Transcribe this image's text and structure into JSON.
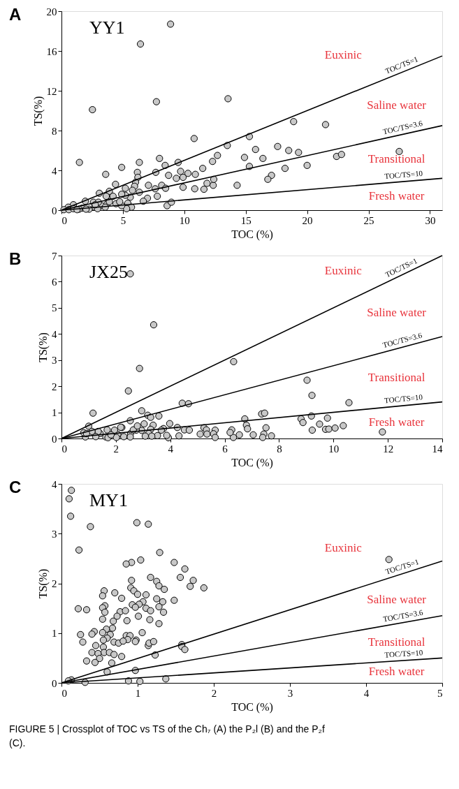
{
  "chart_data": [
    {
      "type": "scatter",
      "title": "YY1",
      "xlabel": "TOC (%)",
      "ylabel": "TS(%)",
      "xlim": [
        0,
        31
      ],
      "ylim": [
        0,
        20
      ],
      "xticks": [
        0,
        5,
        10,
        15,
        20,
        25,
        30
      ],
      "yticks": [
        0,
        4,
        8,
        12,
        16,
        20
      ],
      "annotations": [
        "A",
        "Euxinic",
        "Saline water",
        "Transitional",
        "Fresh water"
      ],
      "series": [
        {
          "marker": "circle",
          "color": "#c8c8c8",
          "x": [
            8.88,
            6.43,
            2.52,
            7.73,
            13.56,
            18.9,
            21.5,
            10.8,
            15.3,
            13.5,
            1.46,
            7.98,
            12.7,
            17.6,
            18.5,
            19.3,
            22.4,
            22.8,
            27.5,
            15.8,
            14.9,
            16.4,
            20.0,
            18.2,
            15.3,
            17.1,
            16.8,
            14.3,
            11.5,
            12.3,
            10.9,
            10.3,
            9.7,
            9.5,
            9.35,
            9.9,
            9.9,
            10.85,
            11.6,
            11.85,
            12.35,
            12.4,
            8.44,
            7.68,
            8.72,
            6.34,
            6.18,
            6.22,
            6.03,
            5.95,
            6.34,
            5.78,
            4.9,
            3.6,
            4.4,
            5.2,
            7.08,
            7.63,
            8.16,
            8.48,
            7.8,
            7.0,
            6.66,
            8.6,
            8.95,
            5.6,
            5.2,
            4.9,
            5.4,
            5.7,
            5.3,
            4.9,
            3.08,
            3.9,
            4.2,
            3.64,
            1.94,
            3.7,
            3.9,
            3.24,
            2.6,
            3.0,
            2.7,
            2.25,
            1.67,
            0.97,
            0.55,
            0.2,
            0.6,
            0.97,
            1.43,
            2.94,
            4.44,
            4.74,
            3.56,
            2.75,
            1.27,
            2.0
          ],
          "values": [
            18.7,
            16.7,
            10.1,
            10.9,
            11.2,
            8.9,
            8.6,
            7.2,
            7.4,
            6.5,
            4.8,
            5.2,
            5.5,
            6.4,
            6.0,
            5.8,
            5.4,
            5.6,
            5.9,
            6.1,
            5.3,
            5.2,
            4.5,
            4.2,
            4.4,
            3.5,
            3.1,
            2.5,
            4.2,
            4.9,
            3.6,
            3.7,
            3.9,
            4.8,
            3.2,
            3.3,
            2.3,
            2.15,
            2.1,
            2.7,
            2.5,
            3.1,
            4.5,
            3.8,
            3.5,
            4.8,
            3.8,
            3.3,
            2.8,
            2.4,
            1.8,
            2.0,
            4.3,
            3.6,
            2.6,
            2.2,
            2.5,
            2.15,
            2.5,
            2.2,
            1.4,
            1.2,
            0.9,
            0.45,
            0.8,
            1.3,
            1.5,
            1.6,
            0.7,
            0.3,
            0.15,
            0.45,
            1.7,
            1.9,
            1.4,
            1.4,
            0.9,
            0.6,
            0.85,
            0.45,
            0.8,
            0.8,
            0.3,
            0.1,
            0.2,
            0.55,
            0.3,
            0.05,
            0.05,
            0.15,
            0.1,
            0.15,
            0.65,
            0.85,
            0.3,
            0.55,
            0.05,
            0.1
          ]
        },
        {
          "type": "line",
          "marker": "none",
          "name": "TOC/TS=1",
          "color": "#000000",
          "x": [
            0,
            31
          ],
          "values": [
            0,
            15.5
          ]
        },
        {
          "type": "line",
          "marker": "none",
          "name": "TOC/TS=3.6",
          "color": "#000000",
          "x": [
            0,
            31
          ],
          "values": [
            0,
            8.5
          ]
        },
        {
          "type": "line",
          "marker": "none",
          "name": "TOC/TS=10",
          "color": "#000000",
          "x": [
            0,
            31
          ],
          "values": [
            0,
            3.2
          ]
        }
      ]
    },
    {
      "type": "scatter",
      "title": "JX25",
      "xlabel": "TOC (%)",
      "ylabel": "TS(%)",
      "xlim": [
        0,
        14
      ],
      "ylim": [
        0,
        7
      ],
      "xticks": [
        0,
        2,
        4,
        6,
        8,
        10,
        12,
        14
      ],
      "yticks": [
        0,
        1,
        2,
        3,
        4,
        5,
        6,
        7
      ],
      "annotations": [
        "B",
        "Euxinic",
        "Saline water",
        "Transitional",
        "Fresh water"
      ],
      "series": [
        {
          "marker": "circle",
          "color": "#c8c8c8",
          "x": [
            2.53,
            3.39,
            2.87,
            2.46,
            6.33,
            1.16,
            9.03,
            9.21,
            10.57,
            4.44,
            4.67,
            2.95,
            3.17,
            3.28,
            3.58,
            2.53,
            1.0,
            2.22,
            3.04,
            3.37,
            3.98,
            4.26,
            4.52,
            4.7,
            5.24,
            5.33,
            5.65,
            6.26,
            6.74,
            6.8,
            6.84,
            7.36,
            7.47,
            7.52,
            7.44,
            8.81,
            8.88,
            9.19,
            9.22,
            9.49,
            9.78,
            9.71,
            9.83,
            10.06,
            10.36,
            11.8,
            7.05,
            6.54,
            6.32,
            6.2,
            7.72,
            7.4,
            5.1,
            5.35,
            5.59,
            5.65,
            4.32,
            3.93,
            3.87,
            3.53,
            3.75,
            3.67,
            3.28,
            3.21,
            3.32,
            3.08,
            2.95,
            2.75,
            2.54,
            2.64,
            2.29,
            2.53,
            2.07,
            2.02,
            1.95,
            1.68,
            1.63,
            1.71,
            1.42,
            1.35,
            1.26,
            1.12,
            0.88,
            0.82,
            0.92,
            1.82,
            2.18,
            2.79
          ],
          "values": [
            6.3,
            4.35,
            2.68,
            1.82,
            2.94,
            0.97,
            2.23,
            1.65,
            1.37,
            1.35,
            1.33,
            1.06,
            0.89,
            0.81,
            0.86,
            0.68,
            0.47,
            0.42,
            0.56,
            0.51,
            0.57,
            0.42,
            0.33,
            0.32,
            0.41,
            0.33,
            0.32,
            0.33,
            0.75,
            0.51,
            0.37,
            0.94,
            0.97,
            0.41,
            0.17,
            0.75,
            0.61,
            0.86,
            0.32,
            0.55,
            0.78,
            0.35,
            0.36,
            0.4,
            0.49,
            0.25,
            0.14,
            0.14,
            0.04,
            0.23,
            0.1,
            0.04,
            0.17,
            0.17,
            0.18,
            0.04,
            0.1,
            0.03,
            0.12,
            0.11,
            0.38,
            0.32,
            0.35,
            0.19,
            0.09,
            0.09,
            0.31,
            0.32,
            0.19,
            0.33,
            0.07,
            0.06,
            0.16,
            0.04,
            0.32,
            0.33,
            0.06,
            0.03,
            0.19,
            0.27,
            0.07,
            0.27,
            0.06,
            0.22,
            0.19,
            0.14,
            0.43,
            0.48
          ]
        },
        {
          "type": "line",
          "marker": "none",
          "name": "TOC/TS=1",
          "color": "#000000",
          "x": [
            0,
            14
          ],
          "values": [
            0,
            7
          ]
        },
        {
          "type": "line",
          "marker": "none",
          "name": "TOC/TS=3.6",
          "color": "#000000",
          "x": [
            0,
            14
          ],
          "values": [
            0,
            3.9
          ]
        },
        {
          "type": "line",
          "marker": "none",
          "name": "TOC/TS=10",
          "color": "#000000",
          "x": [
            0,
            14
          ],
          "values": [
            0,
            1.4
          ]
        }
      ]
    },
    {
      "type": "scatter",
      "title": "MY1",
      "xlabel": "TOC (%)",
      "ylabel": "TS(%)",
      "xlim": [
        0,
        5
      ],
      "ylim": [
        0,
        4
      ],
      "xticks": [
        0,
        1,
        2,
        3,
        4,
        5
      ],
      "yticks": [
        0,
        1,
        2,
        3,
        4
      ],
      "annotations": [
        "C",
        "Euxinic",
        "Saline water",
        "Transitional",
        "Fresh water",
        "FIGURE 5 | Crossplot of TOC vs TS of the Ch₇ (A) the P₂l (B) and the P₂f (C)."
      ],
      "series": [
        {
          "marker": "circle",
          "color": "#c8c8c8",
          "x": [
            0.13,
            0.1,
            0.12,
            0.38,
            0.99,
            1.14,
            0.23,
            1.29,
            4.3,
            1.04,
            1.48,
            0.92,
            0.85,
            1.62,
            1.56,
            1.17,
            0.92,
            1.73,
            1.25,
            1.28,
            1.69,
            1.87,
            0.91,
            0.95,
            1.35,
            0.56,
            0.54,
            0.7,
            1.0,
            1.11,
            0.79,
            1.25,
            1.48,
            1.33,
            1.07,
            1.02,
            0.93,
            0.97,
            0.57,
            0.54,
            1.28,
            1.11,
            1.17,
            0.22,
            0.33,
            0.57,
            0.77,
            0.84,
            1.34,
            0.73,
            1.01,
            0.54,
            0.68,
            0.86,
            1.16,
            1.28,
            0.67,
            0.59,
            0.54,
            0.43,
            0.4,
            0.25,
            1.06,
            0.64,
            0.85,
            0.9,
            0.98,
            0.97,
            0.87,
            0.28,
            0.69,
            0.75,
            0.81,
            0.6,
            0.55,
            0.45,
            0.55,
            1.14,
            1.15,
            1.21,
            1.58,
            1.58,
            1.62,
            0.4,
            0.56,
            0.48,
            0.5,
            0.63,
            0.69,
            0.79,
            0.33,
            0.44,
            0.66,
            1.23,
            0.6,
            0.97,
            1.37,
            0.88,
            1.03,
            0.31,
            0.13,
            0.09
          ],
          "values": [
            3.87,
            3.7,
            3.35,
            3.14,
            3.22,
            3.19,
            2.67,
            2.62,
            2.48,
            2.47,
            2.42,
            2.42,
            2.39,
            2.29,
            2.12,
            2.12,
            2.06,
            2.06,
            2.04,
            1.95,
            1.94,
            1.91,
            1.91,
            1.85,
            1.88,
            1.85,
            1.75,
            1.81,
            1.78,
            1.77,
            1.7,
            1.69,
            1.66,
            1.63,
            1.63,
            1.58,
            1.57,
            1.52,
            1.55,
            1.51,
            1.53,
            1.5,
            1.45,
            1.49,
            1.47,
            1.42,
            1.43,
            1.45,
            1.42,
            1.34,
            1.34,
            1.28,
            1.24,
            1.25,
            1.27,
            1.19,
            1.1,
            1.08,
            1.01,
            1.03,
            0.98,
            0.97,
            1.01,
            0.97,
            0.95,
            0.95,
            0.86,
            0.83,
            0.87,
            0.82,
            0.82,
            0.8,
            0.84,
            0.9,
            0.86,
            0.75,
            0.72,
            0.75,
            0.8,
            0.83,
            0.77,
            0.73,
            0.67,
            0.61,
            0.61,
            0.59,
            0.49,
            0.61,
            0.57,
            0.53,
            0.44,
            0.41,
            0.4,
            0.56,
            0.22,
            0.25,
            0.08,
            0.04,
            0.03,
            0.01,
            0.06,
            0.04
          ]
        },
        {
          "type": "line",
          "marker": "none",
          "name": "TOC/TS=1",
          "color": "#000000",
          "x": [
            0,
            5
          ],
          "values": [
            0,
            2.45
          ]
        },
        {
          "type": "line",
          "marker": "none",
          "name": "TOC/TS=3.6",
          "color": "#000000",
          "x": [
            0,
            5
          ],
          "values": [
            0,
            1.35
          ]
        },
        {
          "type": "line",
          "marker": "none",
          "name": "TOC/TS=10",
          "color": "#000000",
          "x": [
            0,
            5
          ],
          "values": [
            0,
            0.5
          ]
        }
      ]
    }
  ]
}
